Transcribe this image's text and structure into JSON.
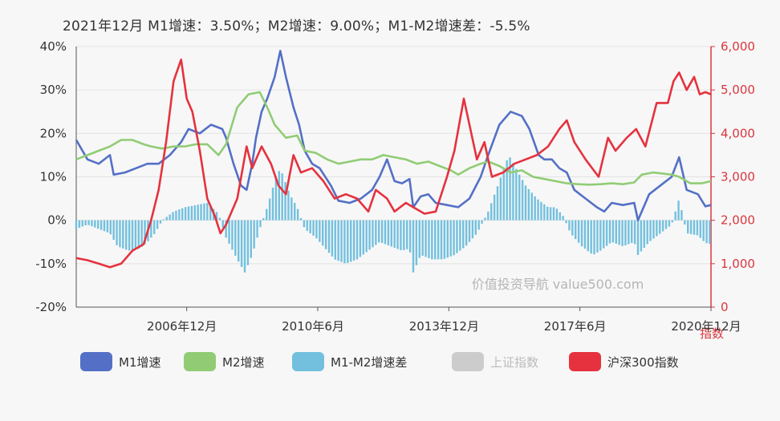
{
  "header": {
    "text": "2021年12月    M1增速：3.50%；M2增速：9.00%；M1-M2增速差：-5.5%"
  },
  "watermark": "价值投资导航 value500.com",
  "legend": [
    {
      "key": "m1",
      "label": "M1增速",
      "color": "#5470c6",
      "enabled": true
    },
    {
      "key": "m2",
      "label": "M2增速",
      "color": "#91cc75",
      "enabled": true
    },
    {
      "key": "diff",
      "label": "M1-M2增速差",
      "color": "#73c0de",
      "enabled": true
    },
    {
      "key": "sh",
      "label": "上证指数",
      "color": "#cccccc",
      "enabled": false
    },
    {
      "key": "hs300",
      "label": "沪深300指数",
      "color": "#e5323e",
      "enabled": true
    }
  ],
  "chart_data": {
    "type": "line",
    "x_tick_labels": [
      "2006年12月",
      "2010年6月",
      "2013年12月",
      "2017年6月",
      "2020年12月"
    ],
    "x_range": [
      "2005-01",
      "2021-12"
    ],
    "y_left": {
      "ticks": [
        "40%",
        "30%",
        "20%",
        "10%",
        "0%",
        "-10%",
        "-20%"
      ],
      "min": -20,
      "max": 40
    },
    "y_right": {
      "ticks": [
        "6,000",
        "5,000",
        "4,000",
        "3,000",
        "2,000",
        "1,000",
        "0"
      ],
      "min": 0,
      "max": 6000,
      "label": "指数"
    },
    "series": [
      {
        "name": "M1增速",
        "axis": "left",
        "color": "#5470c6",
        "points": [
          [
            2005.0,
            18.5
          ],
          [
            2005.3,
            14
          ],
          [
            2005.6,
            13
          ],
          [
            2005.9,
            15
          ],
          [
            2006.0,
            10.5
          ],
          [
            2006.3,
            11
          ],
          [
            2006.6,
            12
          ],
          [
            2006.9,
            13
          ],
          [
            2007.2,
            13
          ],
          [
            2007.5,
            15
          ],
          [
            2007.8,
            18
          ],
          [
            2008.0,
            21
          ],
          [
            2008.3,
            20
          ],
          [
            2008.6,
            22
          ],
          [
            2008.9,
            21
          ],
          [
            2009.0,
            19
          ],
          [
            2009.2,
            13
          ],
          [
            2009.4,
            8
          ],
          [
            2009.55,
            7
          ],
          [
            2009.7,
            13
          ],
          [
            2009.8,
            19
          ],
          [
            2009.95,
            25
          ],
          [
            2010.1,
            28
          ],
          [
            2010.3,
            33
          ],
          [
            2010.45,
            39
          ],
          [
            2010.6,
            33
          ],
          [
            2010.8,
            26
          ],
          [
            2010.95,
            22
          ],
          [
            2011.1,
            16
          ],
          [
            2011.3,
            13
          ],
          [
            2011.5,
            12
          ],
          [
            2011.8,
            8
          ],
          [
            2012.0,
            4.5
          ],
          [
            2012.3,
            4
          ],
          [
            2012.6,
            5
          ],
          [
            2012.9,
            7
          ],
          [
            2013.1,
            10
          ],
          [
            2013.3,
            14
          ],
          [
            2013.5,
            9
          ],
          [
            2013.7,
            8.5
          ],
          [
            2013.9,
            9.5
          ],
          [
            2014.0,
            3
          ],
          [
            2014.2,
            5.5
          ],
          [
            2014.4,
            6
          ],
          [
            2014.6,
            4
          ],
          [
            2014.9,
            3.5
          ],
          [
            2015.2,
            3
          ],
          [
            2015.5,
            5
          ],
          [
            2015.8,
            10
          ],
          [
            2016.0,
            15
          ],
          [
            2016.3,
            22
          ],
          [
            2016.6,
            25
          ],
          [
            2016.9,
            24
          ],
          [
            2017.1,
            21
          ],
          [
            2017.35,
            15
          ],
          [
            2017.5,
            14
          ],
          [
            2017.7,
            14
          ],
          [
            2017.9,
            12
          ],
          [
            2018.1,
            11
          ],
          [
            2018.3,
            7
          ],
          [
            2018.6,
            5
          ],
          [
            2018.9,
            3
          ],
          [
            2019.1,
            2
          ],
          [
            2019.3,
            4
          ],
          [
            2019.6,
            3.5
          ],
          [
            2019.9,
            4
          ],
          [
            2020.0,
            0
          ],
          [
            2020.3,
            6
          ],
          [
            2020.6,
            8
          ],
          [
            2020.9,
            10
          ],
          [
            2021.1,
            14.5
          ],
          [
            2021.3,
            7
          ],
          [
            2021.6,
            6
          ],
          [
            2021.8,
            3.2
          ],
          [
            2021.95,
            3.5
          ]
        ]
      },
      {
        "name": "M2增速",
        "axis": "left",
        "color": "#91cc75",
        "points": [
          [
            2005.0,
            14
          ],
          [
            2005.3,
            15
          ],
          [
            2005.6,
            16
          ],
          [
            2005.9,
            17
          ],
          [
            2006.2,
            18.5
          ],
          [
            2006.5,
            18.5
          ],
          [
            2006.8,
            17.5
          ],
          [
            2007.0,
            17
          ],
          [
            2007.3,
            16.5
          ],
          [
            2007.6,
            17
          ],
          [
            2007.9,
            17
          ],
          [
            2008.2,
            17.5
          ],
          [
            2008.5,
            17.5
          ],
          [
            2008.8,
            15
          ],
          [
            2009.0,
            17.5
          ],
          [
            2009.3,
            26
          ],
          [
            2009.6,
            29
          ],
          [
            2009.9,
            29.5
          ],
          [
            2010.1,
            26
          ],
          [
            2010.3,
            22
          ],
          [
            2010.6,
            19
          ],
          [
            2010.9,
            19.5
          ],
          [
            2011.1,
            16
          ],
          [
            2011.4,
            15.5
          ],
          [
            2011.7,
            14
          ],
          [
            2012.0,
            13
          ],
          [
            2012.3,
            13.5
          ],
          [
            2012.6,
            14
          ],
          [
            2012.9,
            14
          ],
          [
            2013.2,
            15
          ],
          [
            2013.5,
            14.5
          ],
          [
            2013.8,
            14
          ],
          [
            2014.1,
            13
          ],
          [
            2014.4,
            13.5
          ],
          [
            2014.7,
            12.5
          ],
          [
            2015.0,
            11.5
          ],
          [
            2015.2,
            10.5
          ],
          [
            2015.5,
            12
          ],
          [
            2015.8,
            13
          ],
          [
            2016.0,
            13.5
          ],
          [
            2016.3,
            12.5
          ],
          [
            2016.6,
            11
          ],
          [
            2016.9,
            11.5
          ],
          [
            2017.2,
            10
          ],
          [
            2017.5,
            9.5
          ],
          [
            2017.8,
            9
          ],
          [
            2018.1,
            8.5
          ],
          [
            2018.4,
            8.3
          ],
          [
            2018.7,
            8.2
          ],
          [
            2019.0,
            8.3
          ],
          [
            2019.3,
            8.5
          ],
          [
            2019.6,
            8.3
          ],
          [
            2019.9,
            8.7
          ],
          [
            2020.1,
            10.5
          ],
          [
            2020.4,
            11
          ],
          [
            2020.7,
            10.7
          ],
          [
            2020.9,
            10.5
          ],
          [
            2021.1,
            10
          ],
          [
            2021.4,
            8.5
          ],
          [
            2021.7,
            8.5
          ],
          [
            2021.95,
            9
          ]
        ]
      },
      {
        "name": "M1-M2增速差",
        "axis": "left",
        "type": "bar",
        "color": "#73c0de",
        "points": [
          [
            2005.0,
            -2
          ],
          [
            2005.3,
            -1
          ],
          [
            2005.6,
            -2
          ],
          [
            2005.9,
            -3
          ],
          [
            2006.1,
            -6
          ],
          [
            2006.4,
            -7
          ],
          [
            2006.7,
            -6.5
          ],
          [
            2006.9,
            -5
          ],
          [
            2007.1,
            -3
          ],
          [
            2007.3,
            0
          ],
          [
            2007.6,
            2
          ],
          [
            2007.9,
            3
          ],
          [
            2008.2,
            3.5
          ],
          [
            2008.5,
            4
          ],
          [
            2008.8,
            1.5
          ],
          [
            2009.0,
            -4
          ],
          [
            2009.3,
            -9
          ],
          [
            2009.5,
            -12
          ],
          [
            2009.7,
            -8
          ],
          [
            2009.9,
            -2
          ],
          [
            2010.1,
            3
          ],
          [
            2010.3,
            9
          ],
          [
            2010.45,
            12
          ],
          [
            2010.7,
            6
          ],
          [
            2010.9,
            3
          ],
          [
            2011.1,
            -2
          ],
          [
            2011.4,
            -4
          ],
          [
            2011.7,
            -7
          ],
          [
            2011.9,
            -9
          ],
          [
            2012.2,
            -10
          ],
          [
            2012.5,
            -9
          ],
          [
            2012.8,
            -7
          ],
          [
            2013.1,
            -5
          ],
          [
            2013.4,
            -6
          ],
          [
            2013.7,
            -7
          ],
          [
            2013.9,
            -6.5
          ],
          [
            2014.0,
            -12
          ],
          [
            2014.2,
            -8
          ],
          [
            2014.5,
            -9
          ],
          [
            2014.8,
            -9
          ],
          [
            2015.1,
            -8
          ],
          [
            2015.4,
            -6
          ],
          [
            2015.7,
            -3
          ],
          [
            2016.0,
            2
          ],
          [
            2016.3,
            9
          ],
          [
            2016.55,
            15
          ],
          [
            2016.8,
            11
          ],
          [
            2017.0,
            8
          ],
          [
            2017.3,
            5
          ],
          [
            2017.6,
            3
          ],
          [
            2017.8,
            3
          ],
          [
            2018.0,
            1
          ],
          [
            2018.2,
            -3
          ],
          [
            2018.5,
            -6
          ],
          [
            2018.8,
            -8
          ],
          [
            2019.0,
            -7
          ],
          [
            2019.3,
            -5
          ],
          [
            2019.6,
            -6
          ],
          [
            2019.9,
            -5
          ],
          [
            2020.0,
            -8
          ],
          [
            2020.3,
            -5
          ],
          [
            2020.6,
            -3
          ],
          [
            2020.9,
            -1
          ],
          [
            2021.1,
            5
          ],
          [
            2021.3,
            -3
          ],
          [
            2021.6,
            -3.5
          ],
          [
            2021.8,
            -5.2
          ],
          [
            2021.95,
            -5.5
          ]
        ]
      },
      {
        "name": "沪深300指数",
        "axis": "right",
        "color": "#e5323e",
        "points": [
          [
            2005.0,
            1130
          ],
          [
            2005.3,
            1080
          ],
          [
            2005.6,
            1000
          ],
          [
            2005.9,
            920
          ],
          [
            2006.2,
            1000
          ],
          [
            2006.5,
            1300
          ],
          [
            2006.8,
            1450
          ],
          [
            2007.0,
            2000
          ],
          [
            2007.2,
            2700
          ],
          [
            2007.4,
            3800
          ],
          [
            2007.6,
            5200
          ],
          [
            2007.8,
            5700
          ],
          [
            2007.95,
            4800
          ],
          [
            2008.1,
            4500
          ],
          [
            2008.3,
            3600
          ],
          [
            2008.5,
            2500
          ],
          [
            2008.7,
            2100
          ],
          [
            2008.85,
            1700
          ],
          [
            2009.0,
            1900
          ],
          [
            2009.3,
            2500
          ],
          [
            2009.55,
            3700
          ],
          [
            2009.7,
            3200
          ],
          [
            2009.95,
            3700
          ],
          [
            2010.2,
            3300
          ],
          [
            2010.4,
            2800
          ],
          [
            2010.6,
            2600
          ],
          [
            2010.8,
            3500
          ],
          [
            2011.0,
            3100
          ],
          [
            2011.3,
            3200
          ],
          [
            2011.6,
            2900
          ],
          [
            2011.9,
            2500
          ],
          [
            2012.2,
            2600
          ],
          [
            2012.5,
            2500
          ],
          [
            2012.8,
            2200
          ],
          [
            2013.0,
            2700
          ],
          [
            2013.3,
            2500
          ],
          [
            2013.5,
            2200
          ],
          [
            2013.8,
            2400
          ],
          [
            2014.0,
            2300
          ],
          [
            2014.3,
            2150
          ],
          [
            2014.6,
            2200
          ],
          [
            2014.9,
            3000
          ],
          [
            2015.1,
            3600
          ],
          [
            2015.35,
            4800
          ],
          [
            2015.5,
            4200
          ],
          [
            2015.7,
            3400
          ],
          [
            2015.9,
            3800
          ],
          [
            2016.1,
            3000
          ],
          [
            2016.4,
            3100
          ],
          [
            2016.7,
            3300
          ],
          [
            2017.0,
            3400
          ],
          [
            2017.3,
            3500
          ],
          [
            2017.6,
            3700
          ],
          [
            2017.9,
            4100
          ],
          [
            2018.1,
            4300
          ],
          [
            2018.3,
            3800
          ],
          [
            2018.6,
            3400
          ],
          [
            2018.95,
            3000
          ],
          [
            2019.2,
            3900
          ],
          [
            2019.4,
            3600
          ],
          [
            2019.7,
            3900
          ],
          [
            2019.95,
            4100
          ],
          [
            2020.2,
            3700
          ],
          [
            2020.5,
            4700
          ],
          [
            2020.8,
            4700
          ],
          [
            2020.95,
            5200
          ],
          [
            2021.1,
            5400
          ],
          [
            2021.3,
            5000
          ],
          [
            2021.5,
            5300
          ],
          [
            2021.65,
            4900
          ],
          [
            2021.8,
            4950
          ],
          [
            2021.95,
            4900
          ]
        ]
      }
    ],
    "legend_position": "bottom",
    "grid": true
  }
}
